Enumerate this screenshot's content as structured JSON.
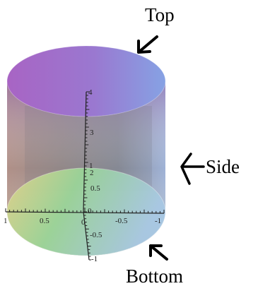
{
  "labels": {
    "top": "Top",
    "side": "Side",
    "bottom": "Bottom"
  },
  "axes": {
    "z_ticks": [
      "4",
      "3",
      "2",
      "1",
      "0.5",
      "0"
    ],
    "x_ticks": [
      "1",
      "0.5",
      "0",
      "-0.5",
      "-1"
    ],
    "y_ticks": [
      "-0.5",
      "-1"
    ]
  },
  "colors": {
    "top_left": "#a060c0",
    "top_right": "#8c98e0",
    "side_left": "#b08e88",
    "side_mid": "#8a8e94",
    "bottom_left": "#e3d58a",
    "bottom_mid": "#8ed59a",
    "bottom_right": "#a8c6e2",
    "arrow": "#000000"
  }
}
